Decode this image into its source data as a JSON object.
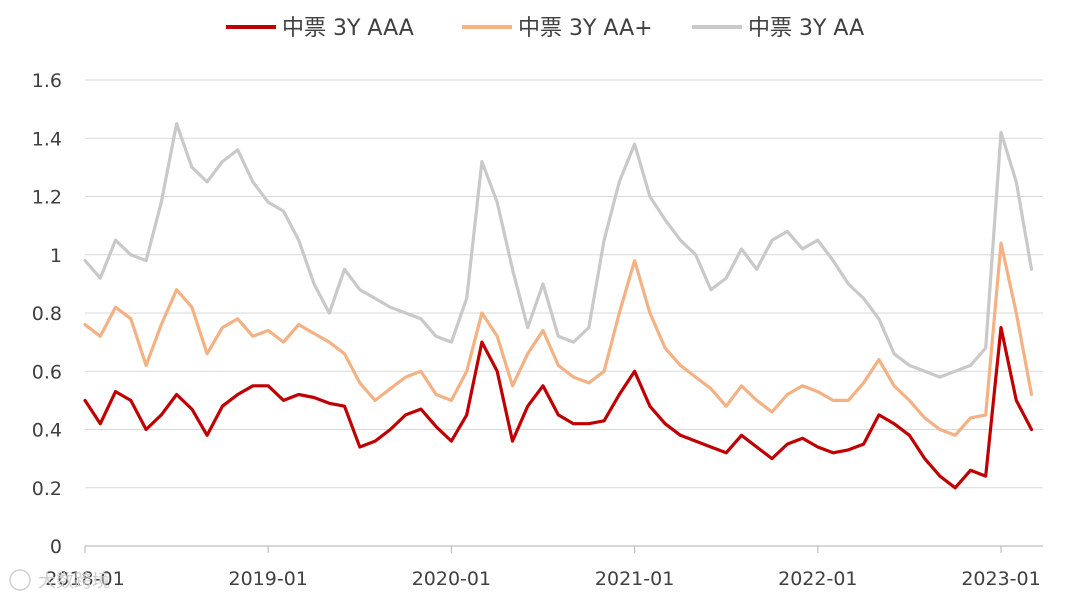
{
  "chart_data": {
    "type": "line",
    "title": "",
    "xlabel": "",
    "ylabel": "",
    "ylim": [
      0,
      1.6
    ],
    "y_ticks": [
      "0",
      "0.2",
      "0.4",
      "0.6",
      "0.8",
      "1",
      "1.2",
      "1.4",
      "1.6"
    ],
    "y_tick_values": [
      0,
      0.2,
      0.4,
      0.6,
      0.8,
      1.0,
      1.2,
      1.4,
      1.6
    ],
    "x_ticks": [
      "2018-01",
      "2019-01",
      "2020-01",
      "2021-01",
      "2022-01",
      "2023-01"
    ],
    "x_range": [
      "2018-01",
      "2023-03"
    ],
    "grid": "horizontal",
    "legend_position": "top-center",
    "series": [
      {
        "name": "中票 3Y AAA",
        "color": "#c00000",
        "x": [
          "2018-01",
          "2018-02",
          "2018-03",
          "2018-04",
          "2018-05",
          "2018-06",
          "2018-07",
          "2018-08",
          "2018-09",
          "2018-10",
          "2018-11",
          "2018-12",
          "2019-01",
          "2019-02",
          "2019-03",
          "2019-04",
          "2019-05",
          "2019-06",
          "2019-07",
          "2019-08",
          "2019-09",
          "2019-10",
          "2019-11",
          "2019-12",
          "2020-01",
          "2020-02",
          "2020-03",
          "2020-04",
          "2020-05",
          "2020-06",
          "2020-07",
          "2020-08",
          "2020-09",
          "2020-10",
          "2020-11",
          "2020-12",
          "2021-01",
          "2021-02",
          "2021-03",
          "2021-04",
          "2021-05",
          "2021-06",
          "2021-07",
          "2021-08",
          "2021-09",
          "2021-10",
          "2021-11",
          "2021-12",
          "2022-01",
          "2022-02",
          "2022-03",
          "2022-04",
          "2022-05",
          "2022-06",
          "2022-07",
          "2022-08",
          "2022-09",
          "2022-10",
          "2022-11",
          "2022-12",
          "2023-01",
          "2023-02",
          "2023-03"
        ],
        "values": [
          0.5,
          0.42,
          0.53,
          0.5,
          0.4,
          0.45,
          0.52,
          0.47,
          0.38,
          0.48,
          0.52,
          0.55,
          0.55,
          0.5,
          0.52,
          0.51,
          0.49,
          0.48,
          0.34,
          0.36,
          0.4,
          0.45,
          0.47,
          0.41,
          0.36,
          0.45,
          0.7,
          0.6,
          0.36,
          0.48,
          0.55,
          0.45,
          0.42,
          0.42,
          0.43,
          0.52,
          0.6,
          0.48,
          0.42,
          0.38,
          0.36,
          0.34,
          0.32,
          0.38,
          0.34,
          0.3,
          0.35,
          0.37,
          0.34,
          0.32,
          0.33,
          0.35,
          0.45,
          0.42,
          0.38,
          0.3,
          0.24,
          0.2,
          0.26,
          0.24,
          0.75,
          0.5,
          0.4
        ]
      },
      {
        "name": "中票 3Y AA+",
        "color": "#f4b183",
        "x": [
          "2018-01",
          "2018-02",
          "2018-03",
          "2018-04",
          "2018-05",
          "2018-06",
          "2018-07",
          "2018-08",
          "2018-09",
          "2018-10",
          "2018-11",
          "2018-12",
          "2019-01",
          "2019-02",
          "2019-03",
          "2019-04",
          "2019-05",
          "2019-06",
          "2019-07",
          "2019-08",
          "2019-09",
          "2019-10",
          "2019-11",
          "2019-12",
          "2020-01",
          "2020-02",
          "2020-03",
          "2020-04",
          "2020-05",
          "2020-06",
          "2020-07",
          "2020-08",
          "2020-09",
          "2020-10",
          "2020-11",
          "2020-12",
          "2021-01",
          "2021-02",
          "2021-03",
          "2021-04",
          "2021-05",
          "2021-06",
          "2021-07",
          "2021-08",
          "2021-09",
          "2021-10",
          "2021-11",
          "2021-12",
          "2022-01",
          "2022-02",
          "2022-03",
          "2022-04",
          "2022-05",
          "2022-06",
          "2022-07",
          "2022-08",
          "2022-09",
          "2022-10",
          "2022-11",
          "2022-12",
          "2023-01",
          "2023-02",
          "2023-03"
        ],
        "values": [
          0.76,
          0.72,
          0.82,
          0.78,
          0.62,
          0.76,
          0.88,
          0.82,
          0.66,
          0.75,
          0.78,
          0.72,
          0.74,
          0.7,
          0.76,
          0.73,
          0.7,
          0.66,
          0.56,
          0.5,
          0.54,
          0.58,
          0.6,
          0.52,
          0.5,
          0.6,
          0.8,
          0.72,
          0.55,
          0.66,
          0.74,
          0.62,
          0.58,
          0.56,
          0.6,
          0.8,
          0.98,
          0.8,
          0.68,
          0.62,
          0.58,
          0.54,
          0.48,
          0.55,
          0.5,
          0.46,
          0.52,
          0.55,
          0.53,
          0.5,
          0.5,
          0.56,
          0.64,
          0.55,
          0.5,
          0.44,
          0.4,
          0.38,
          0.44,
          0.45,
          1.04,
          0.8,
          0.52
        ]
      },
      {
        "name": "中票 3Y AA",
        "color": "#c9c9c9",
        "x": [
          "2018-01",
          "2018-02",
          "2018-03",
          "2018-04",
          "2018-05",
          "2018-06",
          "2018-07",
          "2018-08",
          "2018-09",
          "2018-10",
          "2018-11",
          "2018-12",
          "2019-01",
          "2019-02",
          "2019-03",
          "2019-04",
          "2019-05",
          "2019-06",
          "2019-07",
          "2019-08",
          "2019-09",
          "2019-10",
          "2019-11",
          "2019-12",
          "2020-01",
          "2020-02",
          "2020-03",
          "2020-04",
          "2020-05",
          "2020-06",
          "2020-07",
          "2020-08",
          "2020-09",
          "2020-10",
          "2020-11",
          "2020-12",
          "2021-01",
          "2021-02",
          "2021-03",
          "2021-04",
          "2021-05",
          "2021-06",
          "2021-07",
          "2021-08",
          "2021-09",
          "2021-10",
          "2021-11",
          "2021-12",
          "2022-01",
          "2022-02",
          "2022-03",
          "2022-04",
          "2022-05",
          "2022-06",
          "2022-07",
          "2022-08",
          "2022-09",
          "2022-10",
          "2022-11",
          "2022-12",
          "2023-01",
          "2023-02",
          "2023-03"
        ],
        "values": [
          0.98,
          0.92,
          1.05,
          1.0,
          0.98,
          1.18,
          1.45,
          1.3,
          1.25,
          1.32,
          1.36,
          1.25,
          1.18,
          1.15,
          1.05,
          0.9,
          0.8,
          0.95,
          0.88,
          0.85,
          0.82,
          0.8,
          0.78,
          0.72,
          0.7,
          0.85,
          1.32,
          1.18,
          0.95,
          0.75,
          0.9,
          0.72,
          0.7,
          0.75,
          1.05,
          1.25,
          1.38,
          1.2,
          1.12,
          1.05,
          1.0,
          0.88,
          0.92,
          1.02,
          0.95,
          1.05,
          1.08,
          1.02,
          1.05,
          0.98,
          0.9,
          0.85,
          0.78,
          0.66,
          0.62,
          0.6,
          0.58,
          0.6,
          0.62,
          0.68,
          1.42,
          1.25,
          0.95
        ]
      }
    ]
  },
  "watermark": "大数跨境"
}
